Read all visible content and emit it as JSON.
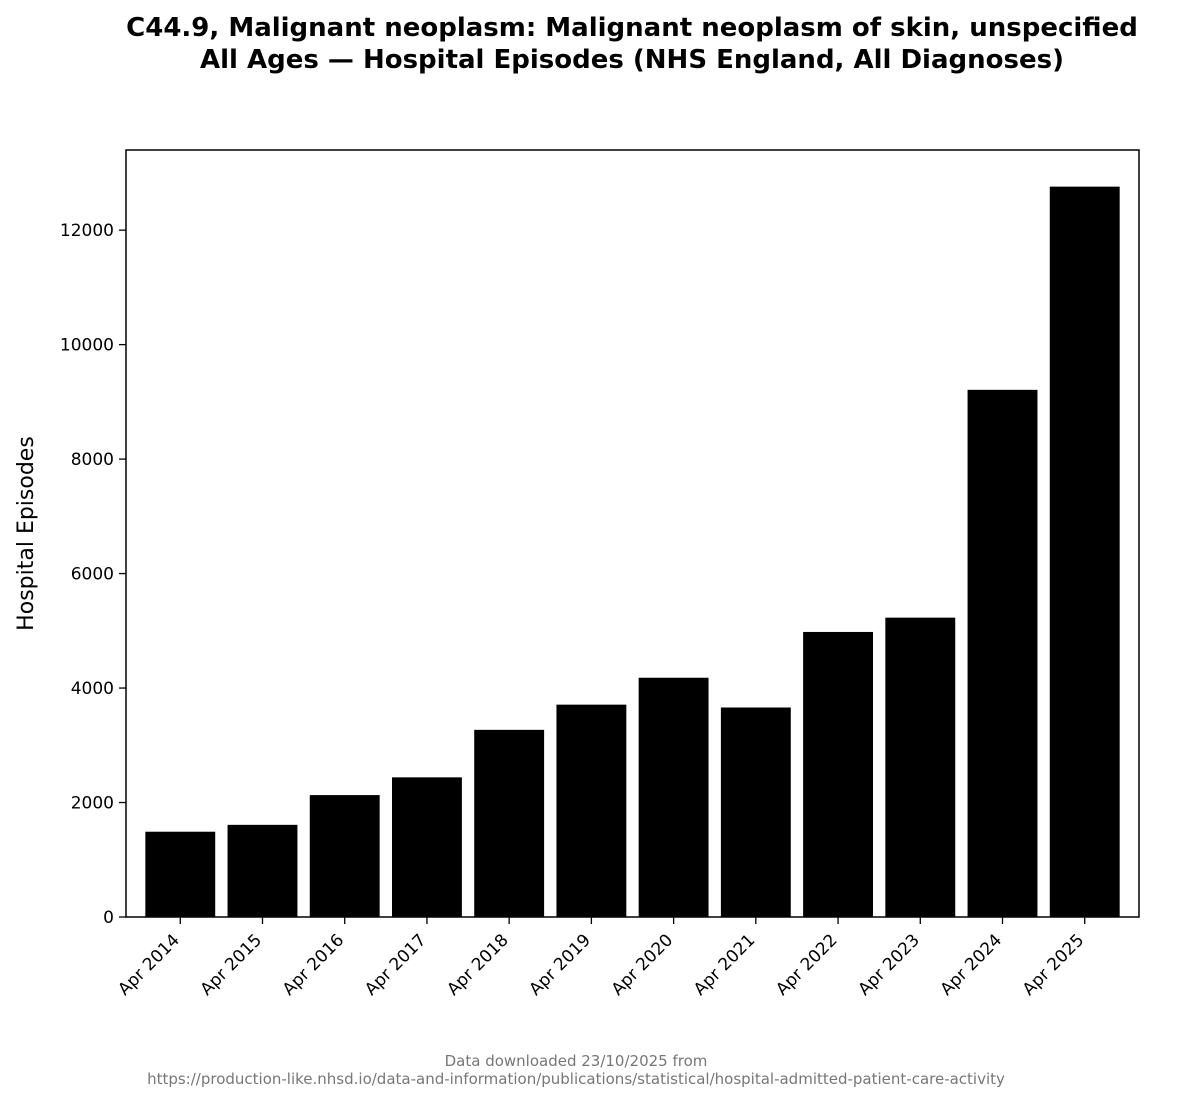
{
  "chart_data": {
    "type": "bar",
    "title": "C44.9, Malignant neoplasm: Malignant neoplasm of skin, unspecified",
    "subtitle": "All Ages — Hospital Episodes (NHS England, All Diagnoses)",
    "xlabel": "",
    "ylabel": "Hospital Episodes",
    "categories": [
      "Apr 2014",
      "Apr 2015",
      "Apr 2016",
      "Apr 2017",
      "Apr 2018",
      "Apr 2019",
      "Apr 2020",
      "Apr 2021",
      "Apr 2022",
      "Apr 2023",
      "Apr 2024",
      "Apr 2025"
    ],
    "values": [
      1490,
      1610,
      2130,
      2440,
      3270,
      3710,
      4180,
      3660,
      4980,
      5230,
      9210,
      12760
    ],
    "yticks": [
      0,
      2000,
      4000,
      6000,
      8000,
      10000,
      12000
    ],
    "ylim": [
      0,
      13400
    ],
    "bar_color": "#000000",
    "grid": false,
    "legend": "none"
  },
  "footer": {
    "line1": "Data downloaded 23/10/2025 from",
    "line2": "https://production-like.nhsd.io/data-and-information/publications/statistical/hospital-admitted-patient-care-activity"
  }
}
